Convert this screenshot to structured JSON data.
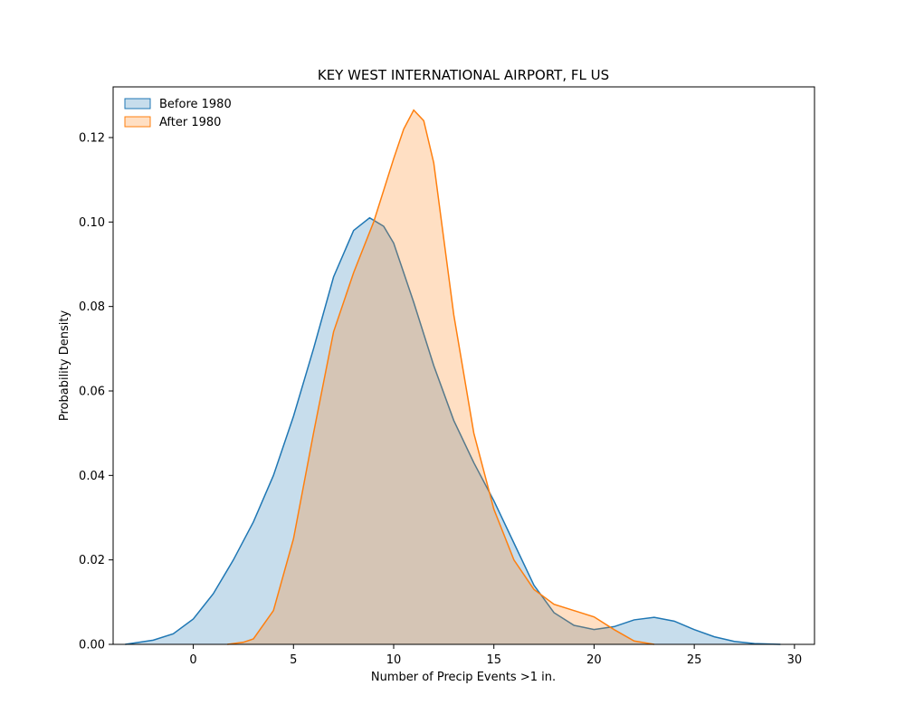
{
  "chart_data": {
    "type": "area",
    "title": "KEY WEST INTERNATIONAL AIRPORT, FL US",
    "xlabel": "Number of Precip Events >1 in.",
    "ylabel": "Probability Density",
    "xlim": [
      -4,
      31
    ],
    "ylim": [
      0,
      0.132
    ],
    "xticks": [
      0,
      5,
      10,
      15,
      20,
      25,
      30
    ],
    "yticks": [
      0.0,
      0.02,
      0.04,
      0.06,
      0.08,
      0.1,
      0.12
    ],
    "ytick_labels": [
      "0.00",
      "0.02",
      "0.04",
      "0.06",
      "0.08",
      "0.10",
      "0.12"
    ],
    "grid": false,
    "legend_position": "top-left",
    "series": [
      {
        "name": "Before 1980",
        "color": "#1f77b4",
        "x": [
          -3.4,
          -2,
          -1,
          0,
          1,
          2,
          3,
          4,
          5,
          6,
          7,
          8,
          8.8,
          9.5,
          10,
          11,
          12,
          13,
          14,
          15,
          16,
          17,
          18,
          19,
          20,
          21,
          22,
          23,
          24,
          25,
          26,
          27,
          28,
          29.3
        ],
        "y": [
          0.0,
          0.001,
          0.0025,
          0.006,
          0.012,
          0.02,
          0.029,
          0.04,
          0.054,
          0.07,
          0.087,
          0.098,
          0.101,
          0.099,
          0.095,
          0.081,
          0.066,
          0.053,
          0.043,
          0.034,
          0.024,
          0.014,
          0.0075,
          0.0045,
          0.0035,
          0.0042,
          0.0058,
          0.0064,
          0.0055,
          0.0035,
          0.0018,
          0.0007,
          0.0002,
          0.0
        ]
      },
      {
        "name": "After 1980",
        "color": "#ff7f0e",
        "x": [
          1.7,
          2.5,
          3,
          4,
          5,
          6,
          7,
          8,
          9,
          10,
          10.5,
          11,
          11.5,
          12,
          13,
          14,
          15,
          16,
          17,
          18,
          19,
          20,
          21,
          22,
          23
        ],
        "y": [
          0.0,
          0.0005,
          0.0013,
          0.008,
          0.025,
          0.05,
          0.074,
          0.088,
          0.1,
          0.115,
          0.122,
          0.1265,
          0.124,
          0.114,
          0.078,
          0.05,
          0.032,
          0.02,
          0.013,
          0.0095,
          0.008,
          0.0065,
          0.0035,
          0.0008,
          0.0
        ]
      }
    ]
  }
}
